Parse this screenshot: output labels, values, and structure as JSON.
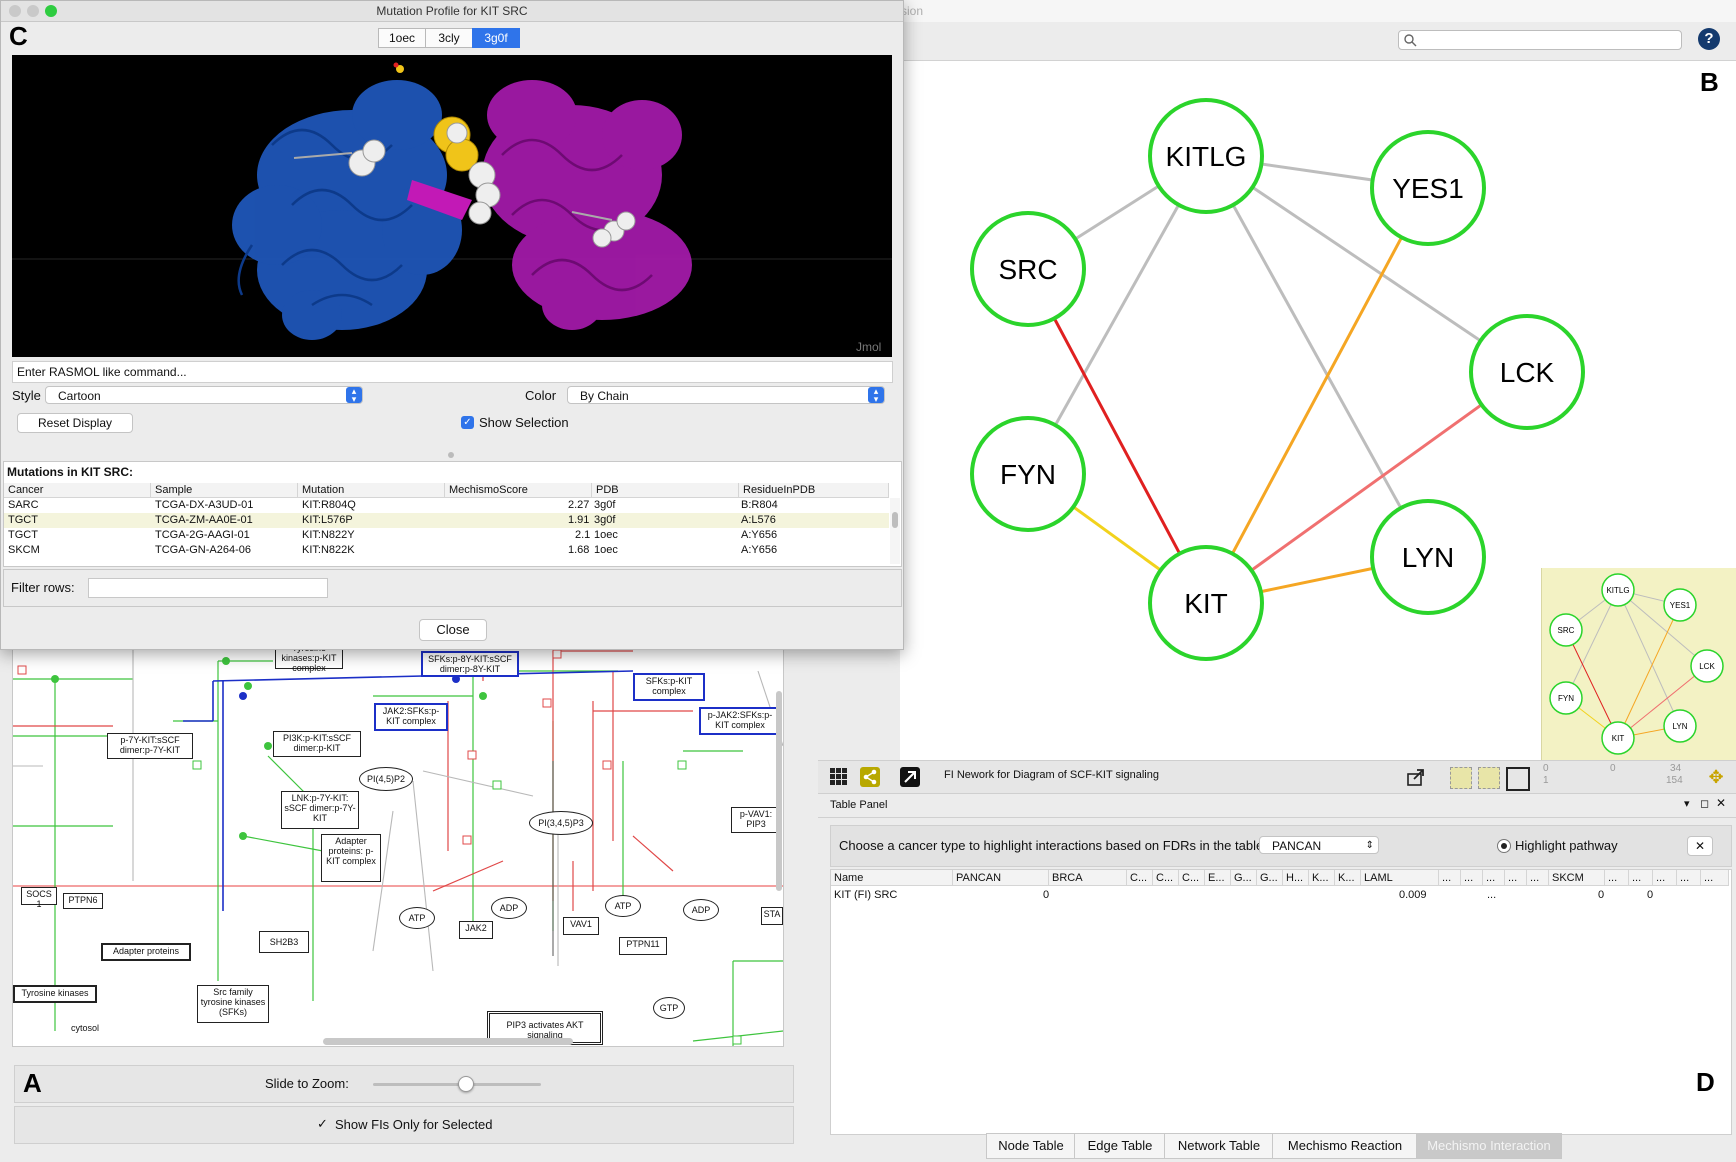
{
  "main_window": {
    "title_fragment": "ssion",
    "search_placeholder": ""
  },
  "panel_letters": {
    "a": "A",
    "b": "B",
    "c": "C",
    "d": "D"
  },
  "network": {
    "nodes": [
      {
        "label": "KITLG"
      },
      {
        "label": "YES1"
      },
      {
        "label": "SRC"
      },
      {
        "label": "LCK"
      },
      {
        "label": "FYN"
      },
      {
        "label": "LYN"
      },
      {
        "label": "KIT"
      }
    ],
    "node_color": "#2bd42b",
    "edge_colors": {
      "gray": "#bdbdbd",
      "red": "#e02020",
      "orange": "#f5a623",
      "yellow": "#f2d21c",
      "pink": "#f07070"
    },
    "minimap_nodes": [
      "KITLG",
      "YES1",
      "SRC",
      "LCK",
      "FYN",
      "LYN",
      "KIT"
    ],
    "toolbar_title": "FI Nework for Diagram of SCF-KIT signaling",
    "counts": {
      "a": "0",
      "b": "1",
      "c": "0",
      "d": "34",
      "e": "154"
    }
  },
  "table_panel": {
    "title": "Table Panel",
    "prompt": "Choose a cancer type to highlight interactions based on FDRs in the table:",
    "cancer_select": "PANCAN",
    "highlight_label": "Highlight pathway",
    "clear_label": "✕",
    "columns": [
      "Name",
      "PANCAN",
      "BRCA",
      "C...",
      "C...",
      "C...",
      "E...",
      "G...",
      "G...",
      "H...",
      "K...",
      "K...",
      "LAML",
      "...",
      "...",
      "...",
      "...",
      "...",
      "SKCM",
      "...",
      "...",
      "...",
      "...",
      "..."
    ],
    "row": {
      "name": "KIT (FI) SRC",
      "pancan": "0",
      "laml": "0.009",
      "dots": "...",
      "skcm": "0",
      "last": "0"
    },
    "tabs": [
      "Node Table",
      "Edge Table",
      "Network Table",
      "Mechismo Reaction",
      "Mechismo Interaction"
    ]
  },
  "pathway": {
    "zoom_label": "Slide to Zoom:",
    "zoom_value": 0.55,
    "fis_label": "Show FIs Only for Selected",
    "fis_checked": true,
    "nodes": {
      "n1": "Tyrosine kinases:p-KIT complex",
      "n2": "SFKs:p-8Y-KIT:sSCF dimer:p-8Y-KIT",
      "n3": "SFKs:p-KIT complex",
      "n4": "JAK2:SFKs:p-KIT complex",
      "n5": "p-JAK2:SFKs:p-KIT complex",
      "n6": "p-7Y-KIT:sSCF dimer:p-7Y-KIT",
      "n7": "PI3K:p-KIT:sSCF dimer:p-KIT",
      "n8": "PI(4,5)P2",
      "n9": "LNK:p-7Y-KIT: sSCF dimer:p-7Y-KIT",
      "n10": "Adapter proteins: p-KIT complex",
      "n11": "PI(3,4,5)P3",
      "n12": "p-VAV1: PIP3",
      "n13": "SOCS 1",
      "n14": "PTPN6",
      "n15": "Adapter proteins",
      "n16": "SH2B3",
      "n17": "ATP",
      "n18": "ADP",
      "n19": "JAK2",
      "n20": "VAV1",
      "n21": "ATP",
      "n22": "ADP",
      "n23": "PTPN11",
      "n24": "STA",
      "n25": "Tyrosine kinases",
      "n26": "Src family tyrosine kinases (SFKs)",
      "n27": "cytosol",
      "n28": "GTP",
      "n29": "PIP3 activates AKT signaling"
    }
  },
  "dialog": {
    "title": "Mutation Profile for KIT SRC",
    "structures": [
      "1oec",
      "3cly",
      "3g0f"
    ],
    "selected_structure": "3g0f",
    "jmol_label": "Jmol",
    "command_placeholder": "Enter RASMOL like command...",
    "style_label": "Style",
    "style_value": "Cartoon",
    "color_label": "Color",
    "color_value": "By Chain",
    "reset_label": "Reset Display",
    "show_selection_label": "Show Selection",
    "show_selection_checked": true,
    "mutations_title": "Mutations in KIT SRC:",
    "mutation_columns": [
      "Cancer",
      "Sample",
      "Mutation",
      "MechismoScore",
      "PDB",
      "ResidueInPDB"
    ],
    "mutations": [
      {
        "cancer": "SARC",
        "sample": "TCGA-DX-A3UD-01",
        "mutation": "KIT:R804Q",
        "score": "2.27",
        "pdb": "3g0f",
        "residue": "B:R804"
      },
      {
        "cancer": "TGCT",
        "sample": "TCGA-ZM-AA0E-01",
        "mutation": "KIT:L576P",
        "score": "1.91",
        "pdb": "3g0f",
        "residue": "A:L576"
      },
      {
        "cancer": "TGCT",
        "sample": "TCGA-2G-AAGI-01",
        "mutation": "KIT:N822Y",
        "score": "2.1",
        "pdb": "1oec",
        "residue": "A:Y656"
      },
      {
        "cancer": "SKCM",
        "sample": "TCGA-GN-A264-06",
        "mutation": "KIT:N822K",
        "score": "1.68",
        "pdb": "1oec",
        "residue": "A:Y656"
      }
    ],
    "filter_label": "Filter rows:",
    "close_label": "Close"
  }
}
